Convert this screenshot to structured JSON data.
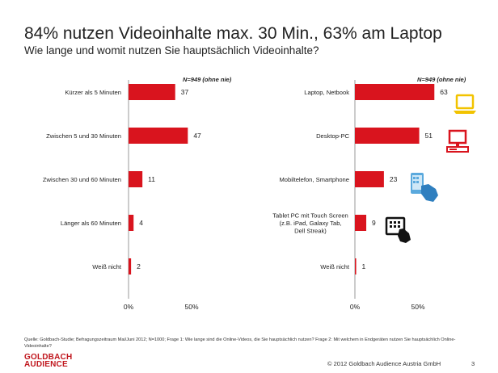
{
  "title": "84% nutzen Videoinhalte max. 30 Min., 63% am Laptop",
  "subtitle": "Wie lange und womit nutzen Sie hauptsächlich Videoinhalte?",
  "colors": {
    "bar": "#d9141e",
    "axis": "#999999",
    "icon": "#f2c300",
    "icon_blue": "#5aa9dd",
    "brand": "#c0161d"
  },
  "chart_data": [
    {
      "type": "bar",
      "orientation": "horizontal",
      "note": "N=949 (ohne nie)",
      "categories": [
        "Kürzer als 5 Minuten",
        "Zwischen 5 und 30 Minuten",
        "Zwischen 30 und 60 Minuten",
        "Länger als 60 Minuten",
        "Weiß nicht"
      ],
      "values": [
        37,
        47,
        11,
        4,
        2
      ],
      "xlim": [
        0,
        100
      ],
      "ticks": [
        "0%",
        "50%"
      ],
      "tick_values": [
        0,
        50
      ]
    },
    {
      "type": "bar",
      "orientation": "horizontal",
      "note": "N=949 (ohne nie)",
      "categories": [
        "Laptop, Netbook",
        "Desktop-PC",
        "Mobiltelefon, Smartphone",
        "Tablet PC mit Touch Screen (z.B. iPad, Galaxy Tab, Dell Streak)",
        "Weiß nicht"
      ],
      "values": [
        63,
        51,
        23,
        9,
        1
      ],
      "xlim": [
        0,
        100
      ],
      "ticks": [
        "0%",
        "50%"
      ],
      "tick_values": [
        0,
        50
      ],
      "icons": [
        "laptop-icon",
        "desktop-icon",
        "smartphone-icon",
        "tablet-icon",
        ""
      ]
    }
  ],
  "footer": {
    "source": "Quelle: Goldbach-Studie; Befragungszeitraum Mai/Juni 2012; N=1000; Frage 1: Wie lange sind die Online-Videos, die Sie hauptsächlich nutzen? Frage 2: Mit welchem in Endgeräten nutzen Sie hauptsächlich Online-Videoinhalte?",
    "logo_line1": "GOLDBACH",
    "logo_line2": "AUDIENCE",
    "copyright": "© 2012 Goldbach Audience Austria GmbH",
    "page": "3"
  }
}
